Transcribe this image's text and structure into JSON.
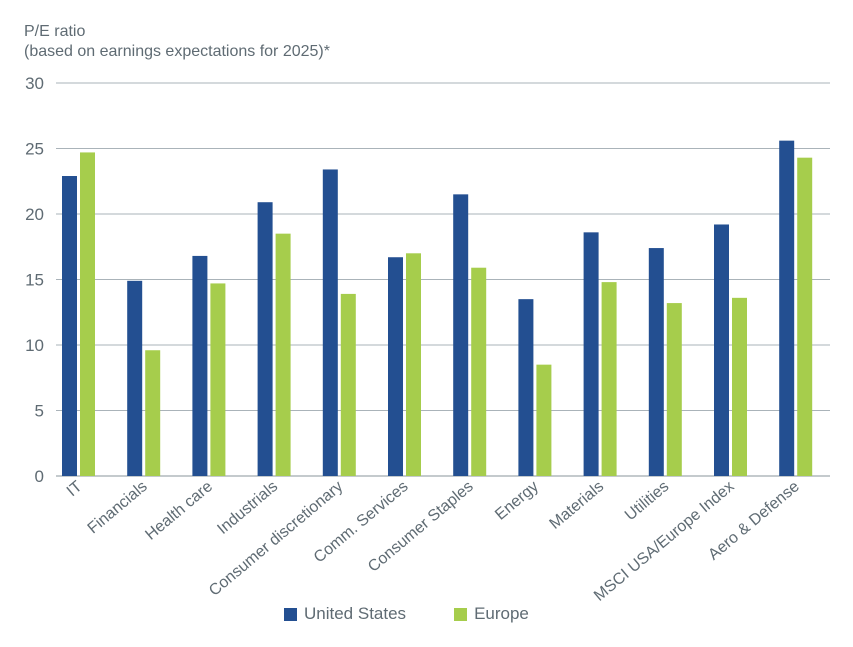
{
  "chart_data": {
    "type": "bar",
    "ylabel_line1": "P/E ratio",
    "ylabel_line2": "(based on earnings expectations for 2025)*",
    "ylim": [
      0,
      30
    ],
    "yticks": [
      "0",
      "5",
      "10",
      "15",
      "20",
      "25",
      "30"
    ],
    "grid": true,
    "legend_position": "bottom",
    "categories": [
      "IT",
      "Financials",
      "Health care",
      "Industrials",
      "Consumer discretionary",
      "Comm. Services",
      "Consumer Staples",
      "Energy",
      "Materials",
      "Utilities",
      "MSCI USA/Europe Index",
      "Aero & Defense"
    ],
    "series": [
      {
        "name": "United States",
        "color": "#234f91",
        "values": [
          22.9,
          14.9,
          16.8,
          20.9,
          23.4,
          16.7,
          21.5,
          13.5,
          18.6,
          17.4,
          19.2,
          25.6
        ]
      },
      {
        "name": "Europe",
        "color": "#a6cd4c",
        "values": [
          24.7,
          9.6,
          14.7,
          18.5,
          13.9,
          17.0,
          15.9,
          8.5,
          14.8,
          13.2,
          13.6,
          24.3
        ]
      }
    ]
  }
}
